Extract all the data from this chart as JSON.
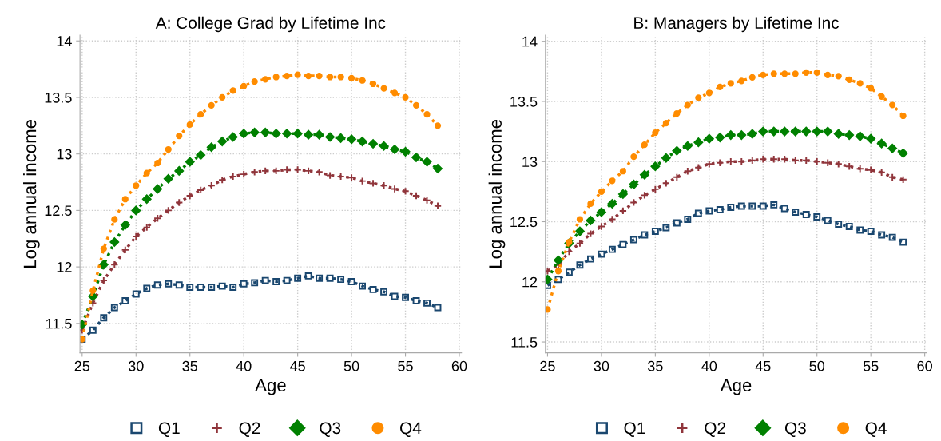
{
  "chart_data": [
    {
      "type": "line",
      "title": "A: College Grad by Lifetime Inc",
      "xlabel": "Age",
      "ylabel": "Log annual income",
      "x": [
        25,
        26,
        27,
        28,
        29,
        30,
        31,
        32,
        33,
        34,
        35,
        36,
        37,
        38,
        39,
        40,
        41,
        42,
        43,
        44,
        45,
        46,
        47,
        48,
        49,
        50,
        51,
        52,
        53,
        54,
        55,
        56,
        57,
        58
      ],
      "xlim": [
        24.8,
        60.2
      ],
      "xticks": [
        25,
        30,
        35,
        40,
        45,
        50,
        55,
        60
      ],
      "ylim": [
        11.24,
        14.05
      ],
      "yticks": [
        11.5,
        12,
        12.5,
        13,
        13.5,
        14
      ],
      "grid": true,
      "legend": "bottom",
      "line_style": "dotted",
      "series": [
        {
          "name": "Q1",
          "color": "#1a476f",
          "marker": "square",
          "values": [
            11.36,
            11.44,
            11.55,
            11.64,
            11.7,
            11.76,
            11.81,
            11.84,
            11.85,
            11.84,
            11.82,
            11.82,
            11.82,
            11.83,
            11.82,
            11.85,
            11.86,
            11.88,
            11.87,
            11.88,
            11.9,
            11.92,
            11.9,
            11.9,
            11.89,
            11.87,
            11.83,
            11.8,
            11.78,
            11.74,
            11.73,
            11.7,
            11.68,
            11.64
          ]
        },
        {
          "name": "Q2",
          "color": "#90353b",
          "marker": "cross",
          "values": [
            11.44,
            11.68,
            11.88,
            12.02,
            12.15,
            12.27,
            12.35,
            12.43,
            12.5,
            12.57,
            12.63,
            12.68,
            12.72,
            12.77,
            12.8,
            12.82,
            12.84,
            12.85,
            12.85,
            12.86,
            12.86,
            12.85,
            12.84,
            12.81,
            12.8,
            12.79,
            12.76,
            12.74,
            12.72,
            12.69,
            12.67,
            12.63,
            12.59,
            12.54
          ]
        },
        {
          "name": "Q3",
          "color": "#008000",
          "marker": "diamond",
          "values": [
            11.49,
            11.74,
            12.02,
            12.22,
            12.37,
            12.5,
            12.6,
            12.69,
            12.78,
            12.85,
            12.93,
            12.99,
            13.06,
            13.11,
            13.15,
            13.18,
            13.19,
            13.19,
            13.18,
            13.18,
            13.18,
            13.17,
            13.17,
            13.15,
            13.14,
            13.13,
            13.11,
            13.09,
            13.07,
            13.04,
            13.02,
            12.97,
            12.93,
            12.87
          ]
        },
        {
          "name": "Q4",
          "color": "#ff8c00",
          "marker": "circle",
          "values": [
            11.36,
            11.79,
            12.16,
            12.42,
            12.6,
            12.72,
            12.83,
            12.92,
            13.04,
            13.16,
            13.26,
            13.35,
            13.43,
            13.5,
            13.56,
            13.6,
            13.64,
            13.66,
            13.68,
            13.69,
            13.7,
            13.69,
            13.69,
            13.68,
            13.68,
            13.67,
            13.65,
            13.62,
            13.58,
            13.54,
            13.5,
            13.43,
            13.35,
            13.25
          ]
        }
      ]
    },
    {
      "type": "line",
      "title": "B: Managers by Lifetime Inc",
      "xlabel": "Age",
      "ylabel": "Log annual income",
      "x": [
        25,
        26,
        27,
        28,
        29,
        30,
        31,
        32,
        33,
        34,
        35,
        36,
        37,
        38,
        39,
        40,
        41,
        42,
        43,
        44,
        45,
        46,
        47,
        48,
        49,
        50,
        51,
        52,
        53,
        54,
        55,
        56,
        57,
        58
      ],
      "xlim": [
        24.8,
        60.2
      ],
      "xticks": [
        25,
        30,
        35,
        40,
        45,
        50,
        55,
        60
      ],
      "ylim": [
        11.41,
        14.05
      ],
      "yticks": [
        11.5,
        12,
        12.5,
        13,
        13.5,
        14
      ],
      "grid": true,
      "legend": "bottom",
      "line_style": "dotted",
      "series": [
        {
          "name": "Q1",
          "color": "#1a476f",
          "marker": "square",
          "values": [
            11.97,
            12.02,
            12.08,
            12.14,
            12.19,
            12.23,
            12.27,
            12.31,
            12.35,
            12.39,
            12.42,
            12.45,
            12.49,
            12.52,
            12.57,
            12.59,
            12.6,
            12.62,
            12.63,
            12.63,
            12.63,
            12.64,
            12.61,
            12.58,
            12.56,
            12.54,
            12.51,
            12.48,
            12.46,
            12.43,
            12.42,
            12.39,
            12.37,
            12.33
          ]
        },
        {
          "name": "Q2",
          "color": "#90353b",
          "marker": "cross",
          "values": [
            12.09,
            12.14,
            12.25,
            12.32,
            12.4,
            12.46,
            12.52,
            12.59,
            12.66,
            12.72,
            12.77,
            12.82,
            12.87,
            12.92,
            12.95,
            12.98,
            12.99,
            13.0,
            13.0,
            13.01,
            13.02,
            13.02,
            13.02,
            13.01,
            13.01,
            13.0,
            12.99,
            12.98,
            12.96,
            12.94,
            12.93,
            12.91,
            12.87,
            12.85
          ]
        },
        {
          "name": "Q3",
          "color": "#008000",
          "marker": "diamond",
          "values": [
            12.02,
            12.18,
            12.32,
            12.42,
            12.51,
            12.58,
            12.65,
            12.73,
            12.81,
            12.89,
            12.96,
            13.03,
            13.09,
            13.13,
            13.16,
            13.19,
            13.2,
            13.22,
            13.22,
            13.23,
            13.25,
            13.25,
            13.25,
            13.25,
            13.25,
            13.25,
            13.25,
            13.23,
            13.22,
            13.21,
            13.19,
            13.15,
            13.11,
            13.07
          ]
        },
        {
          "name": "Q4",
          "color": "#ff8c00",
          "marker": "circle",
          "values": [
            11.77,
            12.09,
            12.33,
            12.52,
            12.65,
            12.75,
            12.84,
            12.92,
            13.04,
            13.14,
            13.24,
            13.32,
            13.4,
            13.47,
            13.53,
            13.57,
            13.62,
            13.65,
            13.67,
            13.7,
            13.72,
            13.73,
            13.73,
            13.73,
            13.74,
            13.74,
            13.72,
            13.71,
            13.68,
            13.65,
            13.61,
            13.54,
            13.47,
            13.38
          ]
        }
      ]
    }
  ]
}
